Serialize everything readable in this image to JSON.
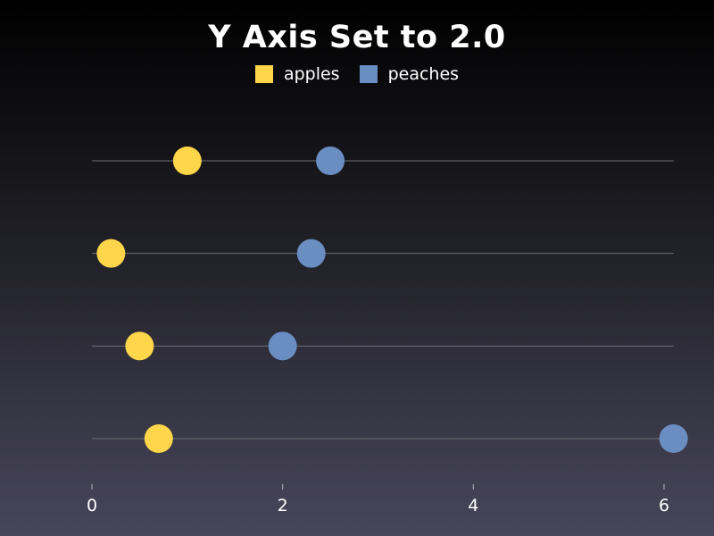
{
  "chart_data": {
    "type": "scatter",
    "title": "Y Axis Set to 2.0",
    "xlabel": "",
    "ylabel": "",
    "xlim": [
      0,
      6.1
    ],
    "x_ticks": [
      "0",
      "2",
      "4",
      "6"
    ],
    "y_tick_values": [
      0,
      1,
      2,
      3
    ],
    "grid": "horizontal",
    "legend_placement": "top-center",
    "series": [
      {
        "name": "apples",
        "color": "#ffd54a",
        "points": [
          {
            "x": 0.7,
            "y": 0
          },
          {
            "x": 0.5,
            "y": 1
          },
          {
            "x": 0.2,
            "y": 2
          },
          {
            "x": 1.0,
            "y": 3
          }
        ]
      },
      {
        "name": "peaches",
        "color": "#6a8dc2",
        "points": [
          {
            "x": 6.1,
            "y": 0
          },
          {
            "x": 2.0,
            "y": 1
          },
          {
            "x": 2.3,
            "y": 2
          },
          {
            "x": 2.5,
            "y": 3
          }
        ]
      }
    ]
  }
}
